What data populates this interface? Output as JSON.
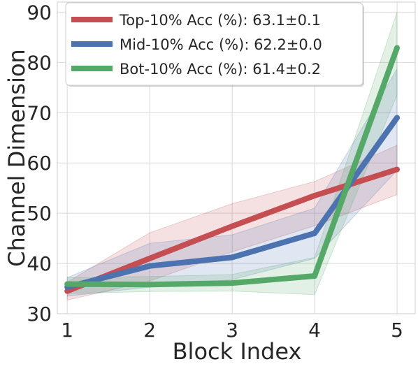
{
  "chart_data": {
    "type": "line",
    "title": "",
    "xlabel": "Block Index",
    "ylabel": "Channel Dimension",
    "x": [
      1,
      2,
      3,
      4,
      5
    ],
    "xlim": [
      0.88,
      5.22
    ],
    "ylim": [
      30,
      92
    ],
    "xticks": [
      1,
      2,
      3,
      4,
      5
    ],
    "yticks": [
      30,
      40,
      50,
      60,
      70,
      80,
      90
    ],
    "grid": true,
    "legend_position": "top-left",
    "series": [
      {
        "name": "Top-10% Acc (%): 63.1±0.1",
        "color": "#c44e52",
        "values": [
          34.5,
          41.0,
          47.4,
          53.5,
          58.7
        ],
        "lower": [
          32.7,
          36.5,
          42.3,
          47.5,
          53.7
        ],
        "upper": [
          36.3,
          46.1,
          51.9,
          56.3,
          63.5
        ]
      },
      {
        "name": "Mid-10% Acc (%): 62.2±0.0",
        "color": "#4c72b0",
        "values": [
          35.3,
          39.5,
          41.2,
          46.0,
          69.0
        ],
        "lower": [
          33.5,
          35.3,
          36.8,
          41.0,
          58.5
        ],
        "upper": [
          37.2,
          44.0,
          45.7,
          51.0,
          78.7
        ]
      },
      {
        "name": "Bot-10% Acc (%): 61.4±0.2",
        "color": "#55a868",
        "values": [
          35.9,
          35.8,
          36.1,
          37.5,
          82.9
        ],
        "lower": [
          34.0,
          34.4,
          34.5,
          33.8,
          73.5
        ],
        "upper": [
          37.2,
          37.4,
          37.8,
          41.2,
          90.0
        ]
      }
    ]
  }
}
